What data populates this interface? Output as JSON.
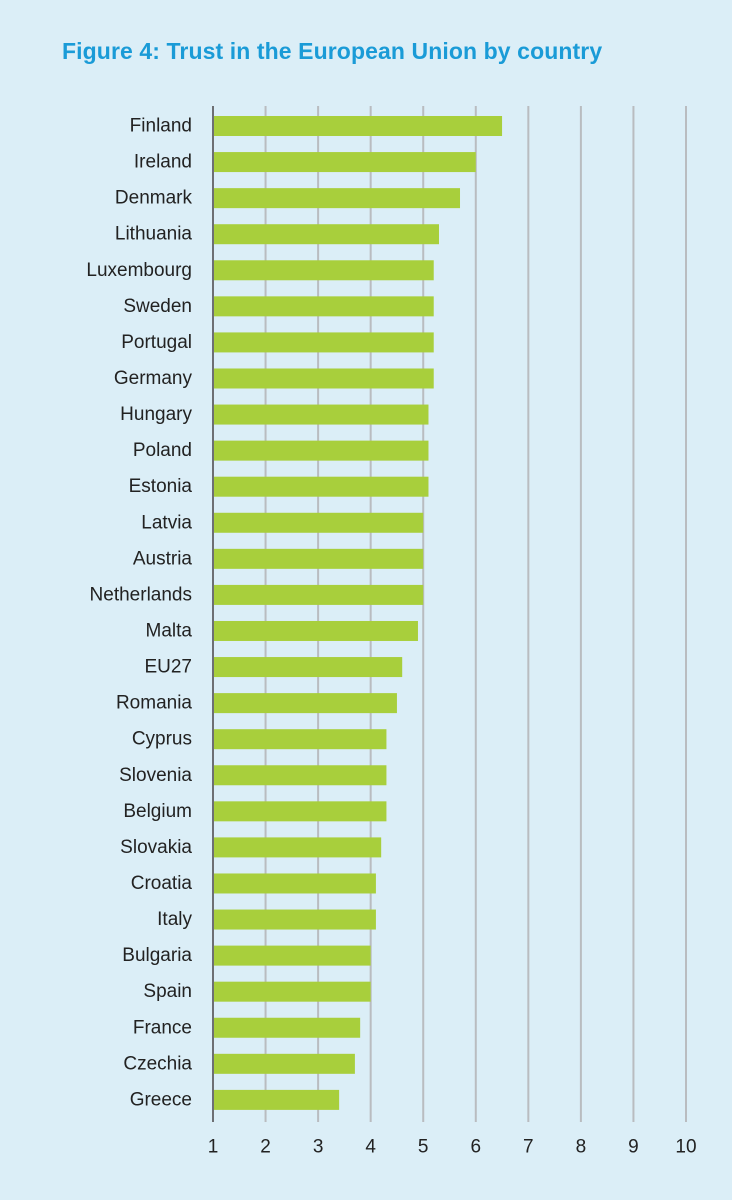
{
  "colors": {
    "background": "#dbeef7",
    "title": "#1a9bd7",
    "bar": "#a8cf3c",
    "gridline": "#b9bcc0",
    "axis": "#6d6f73",
    "text": "#222222"
  },
  "chart_data": {
    "type": "bar",
    "orientation": "horizontal",
    "title": "Figure 4: Trust in the European Union by country",
    "xlabel": "",
    "ylabel": "",
    "xlim": [
      1,
      10
    ],
    "xticks": [
      1,
      2,
      3,
      4,
      5,
      6,
      7,
      8,
      9,
      10
    ],
    "grid": true,
    "categories": [
      "Finland",
      "Ireland",
      "Denmark",
      "Lithuania",
      "Luxembourg",
      "Sweden",
      "Portugal",
      "Germany",
      "Hungary",
      "Poland",
      "Estonia",
      "Latvia",
      "Austria",
      "Netherlands",
      "Malta",
      "EU27",
      "Romania",
      "Cyprus",
      "Slovenia",
      "Belgium",
      "Slovakia",
      "Croatia",
      "Italy",
      "Bulgaria",
      "Spain",
      "France",
      "Czechia",
      "Greece"
    ],
    "values": [
      6.5,
      6.0,
      5.7,
      5.3,
      5.2,
      5.2,
      5.2,
      5.2,
      5.1,
      5.1,
      5.1,
      5.0,
      5.0,
      5.0,
      4.9,
      4.6,
      4.5,
      4.3,
      4.3,
      4.3,
      4.2,
      4.1,
      4.1,
      4.0,
      4.0,
      3.8,
      3.7,
      3.4
    ]
  }
}
